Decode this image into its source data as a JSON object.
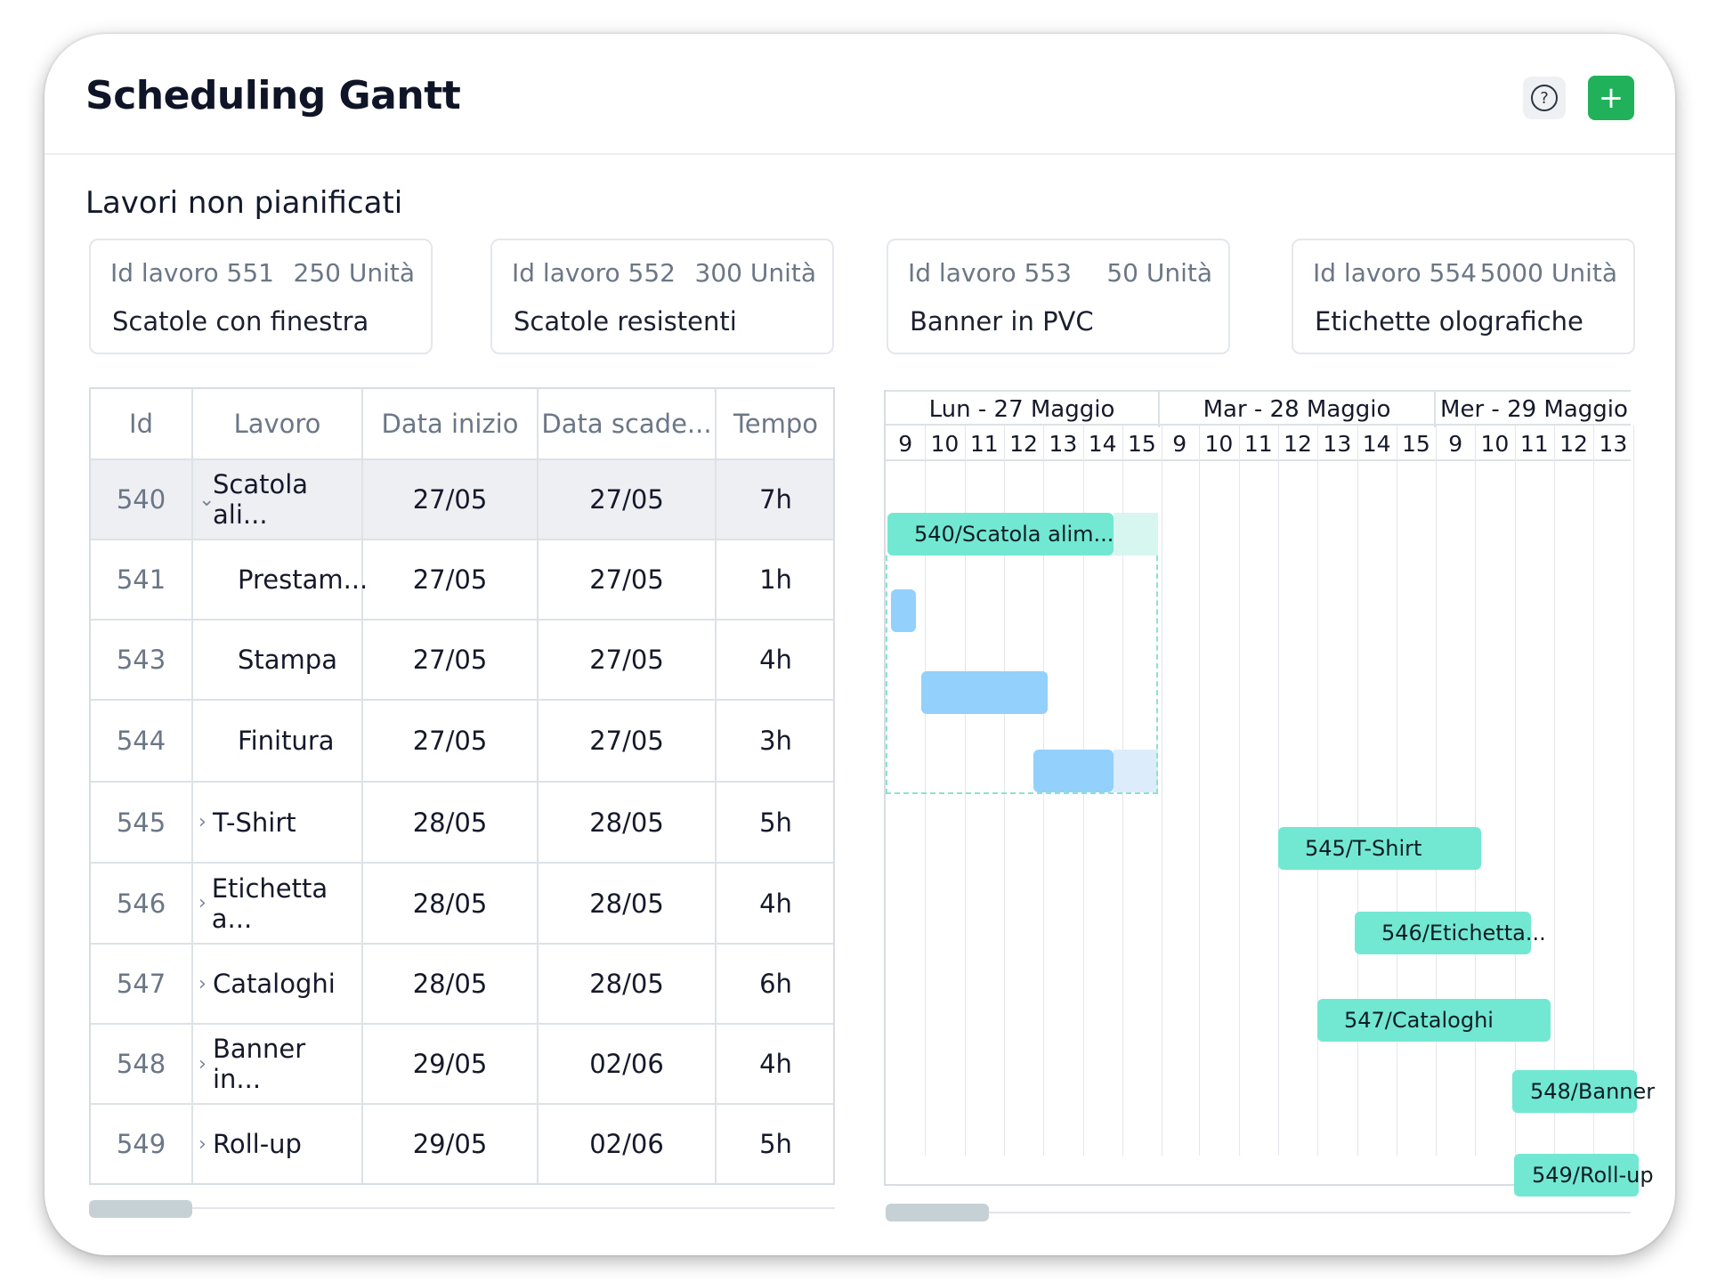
{
  "header": {
    "title": "Scheduling Gantt",
    "help_icon": "?",
    "add_icon": "+"
  },
  "unplanned": {
    "title": "Lavori non pianificati",
    "jobs": [
      {
        "id_label": "Id lavoro 551",
        "units": "250 Unità",
        "name": "Scatole con finestra"
      },
      {
        "id_label": "Id lavoro 552",
        "units": "300 Unità",
        "name": "Scatole resistenti"
      },
      {
        "id_label": "Id lavoro 553",
        "units": "50 Unità",
        "name": "Banner in PVC"
      },
      {
        "id_label": "Id lavoro 554",
        "units": "5000 Unità",
        "name": "Etichette olografiche"
      }
    ]
  },
  "table": {
    "columns": [
      "Id",
      "Lavoro",
      "Data inizio",
      "Data scade...",
      "Tempo"
    ],
    "rows": [
      {
        "id": "540",
        "chevron": "⌄",
        "job": "Scatola ali...",
        "start": "27/05",
        "due": "27/05",
        "time": "7h"
      },
      {
        "id": "541",
        "chevron": "",
        "job": "Prestam...",
        "start": "27/05",
        "due": "27/05",
        "time": "1h"
      },
      {
        "id": "543",
        "chevron": "",
        "job": "Stampa",
        "start": "27/05",
        "due": "27/05",
        "time": "4h"
      },
      {
        "id": "544",
        "chevron": "",
        "job": "Finitura",
        "start": "27/05",
        "due": "27/05",
        "time": "3h"
      },
      {
        "id": "545",
        "chevron": "›",
        "job": "T-Shirt",
        "start": "28/05",
        "due": "28/05",
        "time": "5h"
      },
      {
        "id": "546",
        "chevron": "›",
        "job": "Etichetta a...",
        "start": "28/05",
        "due": "28/05",
        "time": "4h"
      },
      {
        "id": "547",
        "chevron": "›",
        "job": "Cataloghi",
        "start": "28/05",
        "due": "28/05",
        "time": "6h"
      },
      {
        "id": "548",
        "chevron": "›",
        "job": "Banner in...",
        "start": "29/05",
        "due": "02/06",
        "time": "4h"
      },
      {
        "id": "549",
        "chevron": "›",
        "job": "Roll-up",
        "start": "29/05",
        "due": "02/06",
        "time": "5h"
      }
    ]
  },
  "gantt": {
    "days": [
      "Lun - 27 Maggio",
      "Mar - 28 Maggio",
      "Mer - 29 Maggio"
    ],
    "hours": [
      "9",
      "10",
      "11",
      "12",
      "13",
      "14",
      "15",
      "9",
      "10",
      "11",
      "12",
      "13",
      "14",
      "15",
      "9",
      "10",
      "11",
      "12",
      "13"
    ],
    "bars": [
      {
        "label": "540/Scatola alim...",
        "color": "#72e8d3"
      },
      {
        "label": "",
        "color": "#93d0fb"
      },
      {
        "label": "",
        "color": "#93d0fb"
      },
      {
        "label": "",
        "color": "#93d0fb"
      },
      {
        "label": "545/T-Shirt",
        "color": "#72e8d3"
      },
      {
        "label": "546/Etichetta...",
        "color": "#72e8d3"
      },
      {
        "label": "547/Cataloghi",
        "color": "#72e8d3"
      },
      {
        "label": "548/Banner",
        "color": "#72e8d3"
      },
      {
        "label": "549/Roll-up",
        "color": "#72e8d3"
      }
    ]
  },
  "colors": {
    "accent_green": "#20b15a",
    "bar_green": "#72e8d3",
    "bar_blue": "#93d0fb"
  }
}
